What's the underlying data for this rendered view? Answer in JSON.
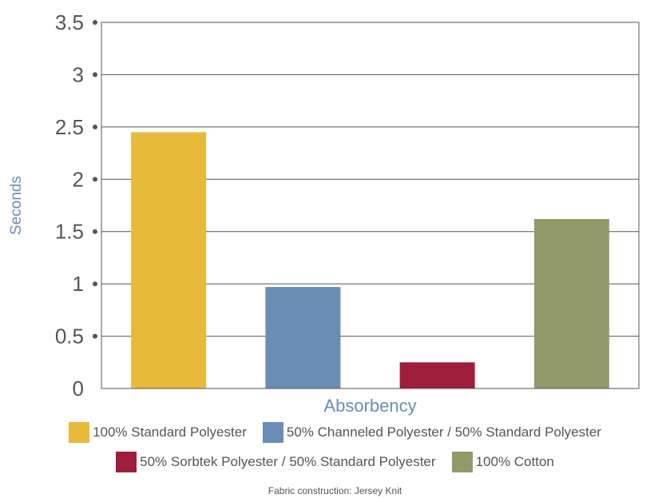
{
  "chart_data": {
    "type": "bar",
    "title": "",
    "xlabel": "Absorbency",
    "ylabel": "Seconds",
    "ylim": [
      0,
      3.5
    ],
    "yticks": [
      0,
      0.5,
      1,
      1.5,
      2,
      2.5,
      3,
      3.5
    ],
    "ytick_labels": [
      "0",
      "0.5",
      "1",
      "1.5",
      "2",
      "2.5",
      "3",
      "3.5"
    ],
    "grid": true,
    "legend_position": "bottom",
    "series": [
      {
        "name": "100% Standard Polyester",
        "value": 2.45,
        "color": "#E8BA3A"
      },
      {
        "name": "50% Channeled Polyester / 50% Standard Polyester",
        "value": 0.97,
        "color": "#6A8DB5"
      },
      {
        "name": "50% Sorbtek Polyester / 50% Standard Polyester",
        "value": 0.25,
        "color": "#9E1E3C"
      },
      {
        "name": "100% Cotton",
        "value": 1.62,
        "color": "#929A6A"
      }
    ],
    "footnote": "Fabric construction:  Jersey Knit"
  },
  "colors": {
    "axis_label": "#6A8DB5",
    "tick_label": "#555555",
    "grid": "#555555"
  }
}
